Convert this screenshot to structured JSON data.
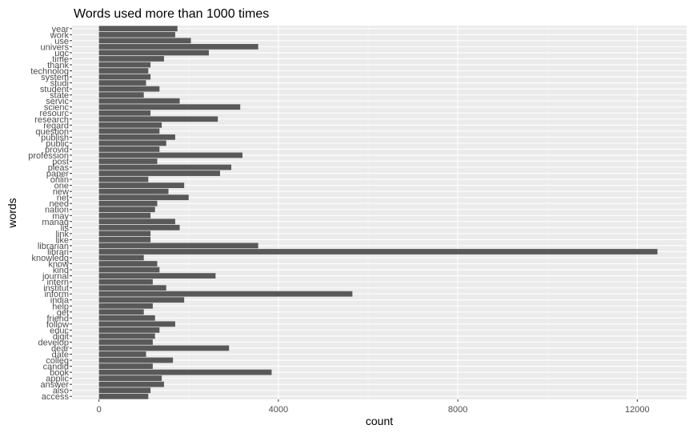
{
  "chart_data": {
    "type": "bar",
    "orientation": "horizontal",
    "title": "Words used more than 1000 times",
    "xlabel": "count",
    "ylabel": "words",
    "xlim": [
      -600,
      13100
    ],
    "xticks": [
      0,
      4000,
      8000,
      12000
    ],
    "xtick_labels": [
      "0",
      "4000",
      "8000",
      "12000"
    ],
    "grid": true,
    "legend": "none",
    "categories": [
      "access",
      "also",
      "answer",
      "applic",
      "book",
      "candid",
      "colleg",
      "date",
      "dear",
      "develop",
      "digit",
      "educ",
      "follow",
      "friend",
      "get",
      "help",
      "india",
      "inform",
      "institut",
      "intern",
      "journal",
      "kind",
      "know",
      "knowledg",
      "librari",
      "librarian",
      "like",
      "link",
      "lis",
      "manag",
      "may",
      "nation",
      "need",
      "net",
      "new",
      "one",
      "onlin",
      "paper",
      "pleas",
      "post",
      "profession",
      "provid",
      "public",
      "publish",
      "question",
      "regard",
      "research",
      "resourc",
      "scienc",
      "servic",
      "state",
      "student",
      "studi",
      "system",
      "technolog",
      "thank",
      "time",
      "ugc",
      "univers",
      "use",
      "work",
      "year"
    ],
    "values": [
      1100,
      1150,
      1450,
      1400,
      3850,
      1200,
      1650,
      1050,
      2900,
      1200,
      1250,
      1350,
      1700,
      1250,
      1000,
      1200,
      1900,
      5650,
      1500,
      1200,
      2600,
      1350,
      1300,
      1000,
      12450,
      3550,
      1150,
      1150,
      1800,
      1700,
      1150,
      1250,
      1300,
      2000,
      1550,
      1900,
      1100,
      2700,
      2950,
      1300,
      3200,
      1350,
      1500,
      1700,
      1350,
      1400,
      2650,
      1150,
      3150,
      1800,
      1000,
      1350,
      1050,
      1150,
      1100,
      1150,
      1450,
      2450,
      3550,
      2050,
      1700,
      1750
    ],
    "colors": {
      "bar": "#595959",
      "panel": "#ebebeb",
      "grid_major": "#ffffff",
      "grid_minor": "#f4f4f4",
      "tick_text": "#4d4d4d",
      "title_text": "#000000"
    }
  }
}
